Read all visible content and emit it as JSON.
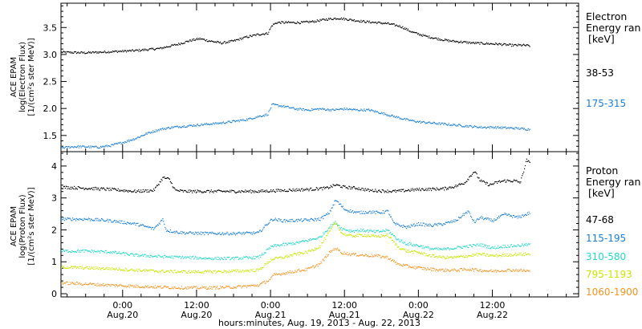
{
  "chart_data": {
    "type": "scatter",
    "x_axis": {
      "title": "hours:minutes, Aug. 19, 2013 - Aug. 22, 2013",
      "range_hours_from_aug19_0000": [
        14,
        98
      ],
      "major_ticks": [
        {
          "hours": 24,
          "time": "0:00",
          "date": "Aug.20"
        },
        {
          "hours": 36,
          "time": "12:00",
          "date": "Aug.20"
        },
        {
          "hours": 48,
          "time": "0:00",
          "date": "Aug.21"
        },
        {
          "hours": 60,
          "time": "12:00",
          "date": "Aug.21"
        },
        {
          "hours": 72,
          "time": "0:00",
          "date": "Aug.22"
        },
        {
          "hours": 84,
          "time": "12:00",
          "date": "Aug.22"
        }
      ],
      "minor_tick_step_hours": 3
    },
    "panels": [
      {
        "id": "electron",
        "ylabel": [
          "ACE EPAM",
          "log(Electron Flux)",
          "[1/(cm²s ster MeV)]"
        ],
        "ylim": [
          1.2,
          3.95
        ],
        "yticks": [
          1.5,
          2.0,
          2.5,
          3.0,
          3.5
        ],
        "ytick_labels": [
          "1.5",
          "2.0",
          "2.5",
          "3.0",
          "3.5"
        ],
        "legend_title": [
          "Electron",
          "Energy ran",
          "[keV]"
        ],
        "series": [
          {
            "name": "38-53",
            "color": "#000000",
            "x": [
              14,
              18,
              22,
              26,
              30,
              33,
              35,
              36.5,
              38,
              40,
              42,
              44,
              46,
              47.5,
              48.2,
              49,
              51,
              53,
              55,
              57,
              59,
              61,
              63,
              65,
              67,
              69,
              71,
              73,
              75,
              77,
              79,
              81,
              83,
              85,
              87,
              89,
              90
            ],
            "y": [
              3.05,
              3.04,
              3.06,
              3.08,
              3.12,
              3.2,
              3.27,
              3.3,
              3.26,
              3.22,
              3.26,
              3.33,
              3.38,
              3.4,
              3.55,
              3.6,
              3.6,
              3.6,
              3.62,
              3.66,
              3.68,
              3.65,
              3.62,
              3.6,
              3.58,
              3.53,
              3.42,
              3.35,
              3.3,
              3.26,
              3.24,
              3.22,
              3.21,
              3.2,
              3.18,
              3.18,
              3.17
            ]
          },
          {
            "name": "175-315",
            "color": "#1a7fd4",
            "x": [
              14,
              16,
              18,
              20,
              22,
              24,
              26,
              28,
              30,
              32,
              34,
              36,
              38,
              40,
              42,
              44,
              46,
              47.5,
              48.2,
              50,
              52,
              54,
              56,
              58,
              60,
              62,
              64,
              66,
              68,
              70,
              72,
              74,
              76,
              78,
              80,
              82,
              84,
              86,
              88,
              90
            ],
            "y": [
              1.28,
              1.3,
              1.3,
              1.29,
              1.32,
              1.38,
              1.45,
              1.55,
              1.62,
              1.66,
              1.68,
              1.7,
              1.72,
              1.74,
              1.77,
              1.8,
              1.86,
              1.9,
              2.08,
              2.05,
              2.0,
              1.98,
              2.0,
              1.98,
              2.0,
              1.98,
              1.98,
              1.92,
              1.86,
              1.8,
              1.76,
              1.74,
              1.72,
              1.7,
              1.68,
              1.66,
              1.66,
              1.65,
              1.64,
              1.62
            ]
          }
        ]
      },
      {
        "id": "proton",
        "ylabel": [
          "ACE EPAM",
          "log(Proton Flux)",
          "[1/(cm²s ster MeV)]"
        ],
        "ylim": [
          -0.1,
          4.45
        ],
        "yticks": [
          0,
          1,
          2,
          3,
          4
        ],
        "ytick_labels": [
          "0",
          "1",
          "2",
          "3",
          "4"
        ],
        "legend_title": [
          "Proton",
          "Energy ran",
          "[keV]"
        ],
        "series": [
          {
            "name": "47-68",
            "color": "#000000",
            "x": [
              14,
              18,
              22,
              26,
              29,
              30.5,
              31.5,
              32.5,
              34,
              38,
              42,
              46,
              50,
              54,
              57,
              58.5,
              60,
              62,
              64,
              68,
              72,
              76,
              78,
              79.5,
              81,
              82,
              83.5,
              85,
              86,
              87.5,
              88.5,
              89.5,
              90
            ],
            "y": [
              3.35,
              3.32,
              3.28,
              3.22,
              3.25,
              3.65,
              3.6,
              3.25,
              3.22,
              3.22,
              3.22,
              3.22,
              3.25,
              3.28,
              3.32,
              3.42,
              3.35,
              3.32,
              3.25,
              3.22,
              3.28,
              3.3,
              3.38,
              3.5,
              3.85,
              3.55,
              3.42,
              3.52,
              3.55,
              3.55,
              3.5,
              4.2,
              4.1
            ]
          },
          {
            "name": "115-195",
            "color": "#1a7fd4",
            "x": [
              14,
              18,
              22,
              26,
              29,
              30.5,
              31,
              32.5,
              34,
              38,
              42,
              46,
              48.2,
              50,
              54,
              56,
              57.5,
              58.5,
              60,
              62,
              64,
              65.5,
              67,
              68,
              70,
              72,
              74,
              76,
              78,
              80,
              81,
              82,
              84,
              86,
              88,
              89.5,
              90
            ],
            "y": [
              2.35,
              2.35,
              2.3,
              2.2,
              2.05,
              2.35,
              2.0,
              1.95,
              1.92,
              1.9,
              1.9,
              1.92,
              2.35,
              2.3,
              2.32,
              2.35,
              2.55,
              2.95,
              2.65,
              2.55,
              2.58,
              2.55,
              2.6,
              2.2,
              2.1,
              2.2,
              2.15,
              2.2,
              2.3,
              2.6,
              2.25,
              2.4,
              2.3,
              2.5,
              2.4,
              2.5,
              2.55
            ]
          },
          {
            "name": "310-580",
            "color": "#22d8c8",
            "x": [
              14,
              18,
              22,
              26,
              30,
              34,
              38,
              42,
              46,
              48.2,
              50,
              52,
              54,
              56,
              57.5,
              58.5,
              59.5,
              61,
              63,
              65,
              67,
              68.5,
              70,
              72,
              74,
              76,
              78,
              80,
              82,
              84,
              86,
              88,
              90
            ],
            "y": [
              1.35,
              1.35,
              1.32,
              1.22,
              1.18,
              1.15,
              1.12,
              1.12,
              1.15,
              1.5,
              1.55,
              1.6,
              1.68,
              1.78,
              2.1,
              2.25,
              2.05,
              1.98,
              2.0,
              1.95,
              2.0,
              1.72,
              1.58,
              1.52,
              1.42,
              1.4,
              1.45,
              1.5,
              1.55,
              1.45,
              1.5,
              1.52,
              1.55
            ]
          },
          {
            "name": "795-1193",
            "color": "#c8e600",
            "x": [
              14,
              18,
              22,
              26,
              30,
              34,
              38,
              42,
              46,
              48.2,
              50,
              52,
              54,
              56,
              57.5,
              58.5,
              59.5,
              61,
              63,
              65,
              67,
              68.5,
              70,
              72,
              74,
              76,
              78,
              80,
              82,
              84,
              86,
              88,
              90
            ],
            "y": [
              0.85,
              0.82,
              0.8,
              0.75,
              0.72,
              0.7,
              0.7,
              0.72,
              0.75,
              1.1,
              1.15,
              1.25,
              1.32,
              1.5,
              1.95,
              2.25,
              1.9,
              1.82,
              1.85,
              1.8,
              1.85,
              1.5,
              1.35,
              1.3,
              1.2,
              1.15,
              1.15,
              1.2,
              1.25,
              1.2,
              1.22,
              1.25,
              1.25
            ]
          },
          {
            "name": "1060-1900",
            "color": "#f39320",
            "x": [
              14,
              18,
              22,
              26,
              30,
              34,
              38,
              42,
              46,
              47.8,
              48.5,
              50,
              52,
              54,
              56,
              57.5,
              58.5,
              59.5,
              61,
              63,
              65,
              67,
              68.5,
              70,
              72,
              74,
              76,
              78,
              80,
              82,
              84,
              86,
              88,
              90
            ],
            "y": [
              0.35,
              0.32,
              0.28,
              0.25,
              0.22,
              0.2,
              0.2,
              0.22,
              0.28,
              0.45,
              0.6,
              0.65,
              0.72,
              0.78,
              0.95,
              1.3,
              1.45,
              1.3,
              1.25,
              1.22,
              1.2,
              1.15,
              0.95,
              0.88,
              0.82,
              0.78,
              0.75,
              0.75,
              0.78,
              0.75,
              0.72,
              0.75,
              0.75,
              0.72
            ]
          }
        ]
      }
    ]
  }
}
